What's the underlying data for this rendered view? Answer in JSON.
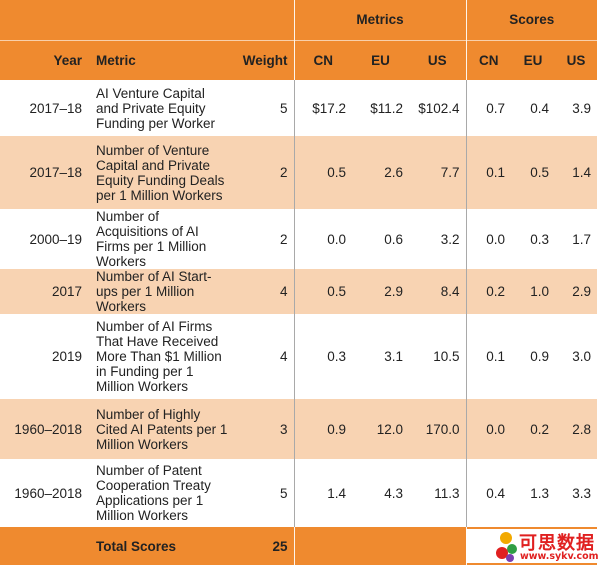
{
  "header": {
    "metrics_group": "Metrics",
    "scores_group": "Scores",
    "year": "Year",
    "metric": "Metric",
    "weight": "Weight",
    "cn": "CN",
    "eu": "EU",
    "us": "US",
    "scn": "CN",
    "seu": "EU",
    "sus": "US"
  },
  "rows": [
    {
      "year": "2017–18",
      "metric": "AI Venture Capital and Private Equity Funding per Worker",
      "weight": "5",
      "cn": "$17.2",
      "eu": "$11.2",
      "us": "$102.4",
      "scn": "0.7",
      "seu": "0.4",
      "sus": "3.9",
      "shade": "white"
    },
    {
      "year": "2017–18",
      "metric": "Number of Venture Capital and Private Equity Funding Deals per 1 Million Workers",
      "weight": "2",
      "cn": "0.5",
      "eu": "2.6",
      "us": "7.7",
      "scn": "0.1",
      "seu": "0.5",
      "sus": "1.4",
      "shade": "peach"
    },
    {
      "year": "2000–19",
      "metric": "Number of Acquisitions of AI Firms per 1 Million Workers",
      "weight": "2",
      "cn": "0.0",
      "eu": "0.6",
      "us": "3.2",
      "scn": "0.0",
      "seu": "0.3",
      "sus": "1.7",
      "shade": "white"
    },
    {
      "year": "2017",
      "metric": "Number of AI Start-ups per 1 Million Workers",
      "weight": "4",
      "cn": "0.5",
      "eu": "2.9",
      "us": "8.4",
      "scn": "0.2",
      "seu": "1.0",
      "sus": "2.9",
      "shade": "peach"
    },
    {
      "year": "2019",
      "metric": "Number of AI Firms That Have Received More Than $1 Million in Funding per 1 Million Workers",
      "weight": "4",
      "cn": "0.3",
      "eu": "3.1",
      "us": "10.5",
      "scn": "0.1",
      "seu": "0.9",
      "sus": "3.0",
      "shade": "white"
    },
    {
      "year": "1960–2018",
      "metric": "Number of Highly Cited AI Patents per 1 Million Workers",
      "weight": "3",
      "cn": "0.9",
      "eu": "12.0",
      "us": "170.0",
      "scn": "0.0",
      "seu": "0.2",
      "sus": "2.8",
      "shade": "peach"
    },
    {
      "year": "1960–2018",
      "metric": "Number of Patent Cooperation Treaty Applications per 1 Million Workers",
      "weight": "5",
      "cn": "1.4",
      "eu": "4.3",
      "us": "11.3",
      "scn": "0.4",
      "seu": "1.3",
      "sus": "3.3",
      "shade": "white"
    }
  ],
  "total": {
    "label": "Total Scores",
    "weight": "25",
    "partial": "1"
  },
  "watermark": {
    "text": "可思数据",
    "url": "www.sykv.com"
  }
}
